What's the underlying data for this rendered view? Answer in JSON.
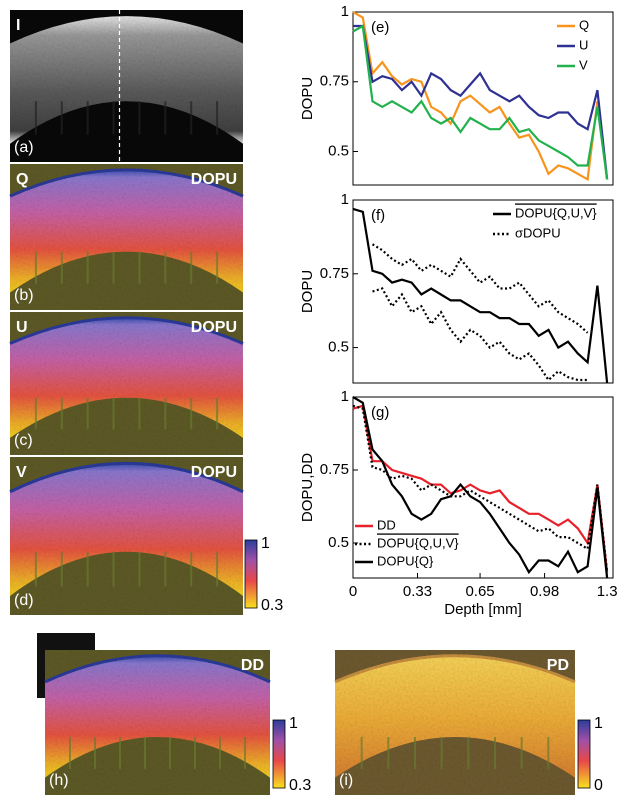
{
  "panels": [
    {
      "label": "(a)",
      "tag": "I"
    },
    {
      "label": "(b)",
      "tag": "Q",
      "title": "DOPU"
    },
    {
      "label": "(c)",
      "tag": "U",
      "title": "DOPU"
    },
    {
      "label": "(d)",
      "tag": "V",
      "title": "DOPU"
    },
    {
      "label": "(h)",
      "title": "DD"
    },
    {
      "label": "(i)",
      "title": "PD"
    }
  ],
  "colorbars": [
    {
      "max": 1,
      "min": 0.3
    },
    {
      "max": 1,
      "min": 0.3
    },
    {
      "max": 1,
      "min": 0
    }
  ],
  "chart_data": [
    {
      "type": "line",
      "label": "(e)",
      "ylabel": "DOPU",
      "legend": "upper right",
      "x": [
        0,
        0.05,
        0.1,
        0.15,
        0.2,
        0.25,
        0.3,
        0.35,
        0.4,
        0.45,
        0.5,
        0.55,
        0.6,
        0.65,
        0.7,
        0.75,
        0.8,
        0.85,
        0.9,
        0.95,
        1.0,
        1.05,
        1.1,
        1.15,
        1.2,
        1.25,
        1.3
      ],
      "xlim": [
        0,
        1.33
      ],
      "ylim": [
        0.38,
        1
      ],
      "yticks": [
        0.5,
        0.75,
        1
      ],
      "series": [
        {
          "name": "Q",
          "color": "#f7941d",
          "values": [
            1,
            0.98,
            0.78,
            0.82,
            0.77,
            0.74,
            0.76,
            0.75,
            0.66,
            0.64,
            0.6,
            0.68,
            0.7,
            0.67,
            0.64,
            0.66,
            0.6,
            0.55,
            0.56,
            0.5,
            0.42,
            0.45,
            0.44,
            0.42,
            0.4,
            0.68,
            0.4
          ]
        },
        {
          "name": "U",
          "color": "#2e3192",
          "values": [
            0.95,
            0.95,
            0.75,
            0.77,
            0.76,
            0.72,
            0.75,
            0.7,
            0.78,
            0.76,
            0.72,
            0.7,
            0.74,
            0.78,
            0.72,
            0.7,
            0.68,
            0.7,
            0.66,
            0.63,
            0.62,
            0.64,
            0.64,
            0.6,
            0.58,
            0.72,
            0.4
          ]
        },
        {
          "name": "V",
          "color": "#22b14c",
          "values": [
            0.93,
            0.95,
            0.68,
            0.66,
            0.68,
            0.66,
            0.64,
            0.68,
            0.62,
            0.6,
            0.62,
            0.57,
            0.62,
            0.6,
            0.58,
            0.58,
            0.62,
            0.57,
            0.58,
            0.54,
            0.52,
            0.5,
            0.48,
            0.45,
            0.45,
            0.66,
            0.4
          ]
        }
      ]
    },
    {
      "type": "line",
      "label": "(f)",
      "ylabel": "DOPU",
      "legend": "upper right",
      "x": [
        0,
        0.05,
        0.1,
        0.15,
        0.2,
        0.25,
        0.3,
        0.35,
        0.4,
        0.45,
        0.5,
        0.55,
        0.6,
        0.65,
        0.7,
        0.75,
        0.8,
        0.85,
        0.9,
        0.95,
        1.0,
        1.05,
        1.1,
        1.15,
        1.2,
        1.25,
        1.3
      ],
      "xlim": [
        0,
        1.33
      ],
      "ylim": [
        0.38,
        1
      ],
      "yticks": [
        0.5,
        0.75,
        1
      ],
      "series": [
        {
          "name": "DOPU{Q,U,V}",
          "color": "#000000",
          "dash": "solid",
          "values": [
            0.97,
            0.96,
            0.76,
            0.75,
            0.72,
            0.73,
            0.72,
            0.68,
            0.7,
            0.68,
            0.66,
            0.66,
            0.64,
            0.62,
            0.62,
            0.6,
            0.6,
            0.58,
            0.58,
            0.54,
            0.56,
            0.5,
            0.52,
            0.48,
            0.45,
            0.71,
            0.38
          ]
        },
        {
          "name": "σDOPU",
          "color": "#000000",
          "dash": "dotted",
          "values": [
            null,
            null,
            0.85,
            0.83,
            0.8,
            0.78,
            0.8,
            0.76,
            0.78,
            0.76,
            0.74,
            0.8,
            0.76,
            0.72,
            0.74,
            0.7,
            0.7,
            0.72,
            0.68,
            0.64,
            0.66,
            0.62,
            0.6,
            0.58,
            0.55,
            null,
            null
          ]
        },
        {
          "color": "#000000",
          "dash": "dotted",
          "values": [
            null,
            null,
            0.69,
            0.7,
            0.64,
            0.68,
            0.62,
            0.64,
            0.58,
            0.62,
            0.56,
            0.52,
            0.56,
            0.54,
            0.5,
            0.52,
            0.48,
            0.46,
            0.48,
            0.44,
            0.39,
            0.42,
            0.4,
            0.39,
            0.39,
            null,
            null
          ]
        }
      ]
    },
    {
      "type": "line",
      "label": "(g)",
      "ylabel": "DOPU,DD",
      "xlabel": "Depth [mm]",
      "legend": "lower left",
      "x": [
        0,
        0.05,
        0.1,
        0.15,
        0.2,
        0.25,
        0.3,
        0.35,
        0.4,
        0.45,
        0.5,
        0.55,
        0.6,
        0.65,
        0.7,
        0.75,
        0.8,
        0.85,
        0.9,
        0.95,
        1.0,
        1.05,
        1.1,
        1.15,
        1.2,
        1.25,
        1.3
      ],
      "xlim": [
        0,
        1.33
      ],
      "xticks": [
        0,
        0.33,
        0.65,
        0.98,
        1.3
      ],
      "ylim": [
        0.38,
        1
      ],
      "yticks": [
        0.5,
        0.75,
        1
      ],
      "series": [
        {
          "name": "DD",
          "color": "#e8202a",
          "dash": "solid",
          "values": [
            0.96,
            0.97,
            0.78,
            0.78,
            0.75,
            0.74,
            0.73,
            0.72,
            0.7,
            0.7,
            0.67,
            0.68,
            0.7,
            0.68,
            0.67,
            0.68,
            0.64,
            0.62,
            0.6,
            0.6,
            0.58,
            0.56,
            0.58,
            0.55,
            0.5,
            0.7,
            0.4
          ]
        },
        {
          "name": "DOPU{Q,U,V}",
          "color": "#000000",
          "dash": "dotted",
          "values": [
            0.97,
            0.96,
            0.76,
            0.75,
            0.72,
            0.73,
            0.72,
            0.68,
            0.7,
            0.68,
            0.66,
            0.66,
            0.68,
            0.66,
            0.64,
            0.62,
            0.6,
            0.58,
            0.56,
            0.54,
            0.55,
            0.52,
            0.52,
            0.5,
            0.48,
            0.7,
            0.4
          ]
        },
        {
          "name": "DOPU{Q}",
          "color": "#000000",
          "dash": "solid",
          "values": [
            1,
            0.98,
            0.82,
            0.78,
            0.7,
            0.66,
            0.6,
            0.58,
            0.6,
            0.65,
            0.66,
            0.7,
            0.66,
            0.64,
            0.6,
            0.55,
            0.5,
            0.46,
            0.4,
            0.44,
            0.44,
            0.42,
            0.47,
            0.4,
            0.42,
            0.69,
            0.38
          ]
        }
      ]
    }
  ]
}
